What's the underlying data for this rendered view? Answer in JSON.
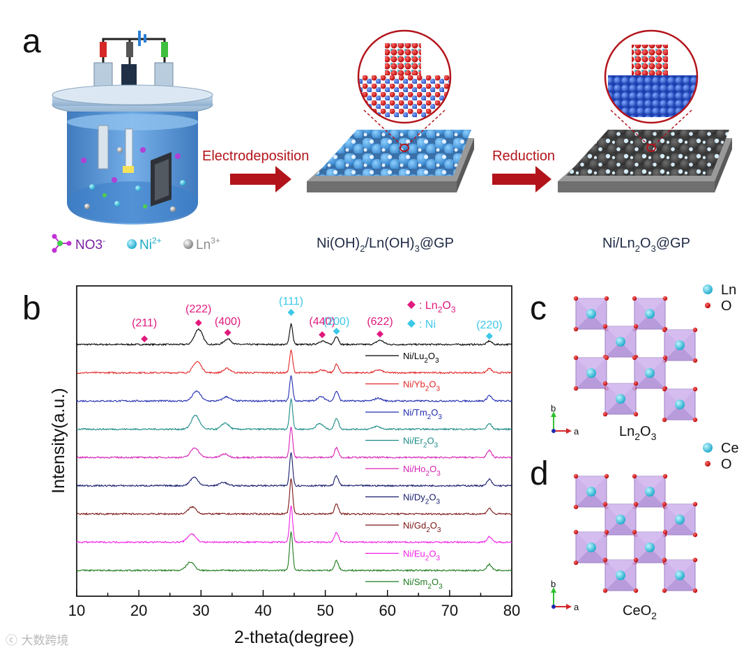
{
  "panel_a": {
    "letter": "a",
    "arrow1_label": "Electrodeposition",
    "arrow2_label": "Reduction",
    "legend": {
      "no3": "NO3",
      "no3_sup": "-",
      "ni": "Ni",
      "ni_sup": "2+",
      "ln": "Ln",
      "ln_sup": "3+"
    },
    "caption_middle": {
      "a": "Ni(OH)",
      "s1": "2",
      "b": "/Ln(OH)",
      "s2": "3",
      "c": "@GP"
    },
    "caption_right": {
      "a": "Ni/Ln",
      "s1": "2",
      "b": "O",
      "s2": "3",
      "c": "@GP"
    },
    "colors": {
      "arrow": "#b3141b",
      "no3": "#7a1fa2",
      "ni": "#19b8c8",
      "ln": "#9a9a9a",
      "electrolyte": "#4f8fd6"
    }
  },
  "panel_b": {
    "letter": "b",
    "legend": {
      "ln2o3_label": "Ln2O3",
      "ni_label": "Ni",
      "ln2o3_color": "#e0197d",
      "ni_color": "#3cc8e8"
    }
  },
  "panel_c": {
    "letter": "c",
    "legend": [
      "Ln",
      "O"
    ],
    "axis_b": "b",
    "axis_a": "a",
    "label": {
      "a": "Ln",
      "s1": "2",
      "b": "O",
      "s2": "3"
    }
  },
  "panel_d": {
    "letter": "d",
    "legend": [
      "Ce",
      "O"
    ],
    "axis_b": "b",
    "axis_a": "a",
    "label": {
      "a": "CeO",
      "s1": "2"
    }
  },
  "chart_data": {
    "type": "line",
    "title": "",
    "xlabel": "2-theta(degree)",
    "ylabel": "Intensity(a.u.)",
    "xlim": [
      10,
      80
    ],
    "xticks": [
      10,
      20,
      30,
      40,
      50,
      60,
      70,
      80
    ],
    "x_minor_step": 5,
    "y_units": "arbitrary, stacked offsets",
    "reflections": [
      {
        "label": "(211)",
        "x": 20.9,
        "phase": "Ln2O3"
      },
      {
        "label": "(222)",
        "x": 29.6,
        "phase": "Ln2O3"
      },
      {
        "label": "(400)",
        "x": 34.3,
        "phase": "Ln2O3"
      },
      {
        "label": "(111)",
        "x": 44.5,
        "phase": "Ni"
      },
      {
        "label": "(440)",
        "x": 49.5,
        "phase": "Ln2O3"
      },
      {
        "label": "(200)",
        "x": 51.8,
        "phase": "Ni"
      },
      {
        "label": "(622)",
        "x": 58.8,
        "phase": "Ln2O3"
      },
      {
        "label": "(220)",
        "x": 76.4,
        "phase": "Ni"
      }
    ],
    "series": [
      {
        "name": "Ni/Lu2O3",
        "name_parts": [
          "Ni/Lu",
          "2",
          "O",
          "3"
        ],
        "color": "#000000",
        "peaks": [
          {
            "x": 29.6,
            "h": 22,
            "w": 0.9
          },
          {
            "x": 34.3,
            "h": 8,
            "w": 0.8
          },
          {
            "x": 44.5,
            "h": 30,
            "w": 0.35
          },
          {
            "x": 49.5,
            "h": 5,
            "w": 0.8
          },
          {
            "x": 51.8,
            "h": 12,
            "w": 0.45
          },
          {
            "x": 58.8,
            "h": 6,
            "w": 0.8
          },
          {
            "x": 76.4,
            "h": 5,
            "w": 0.5
          }
        ]
      },
      {
        "name": "Ni/Yb2O3",
        "name_parts": [
          "Ni/Yb",
          "2",
          "O",
          "3"
        ],
        "color": "#e32626",
        "peaks": [
          {
            "x": 29.4,
            "h": 16,
            "w": 0.9
          },
          {
            "x": 34.2,
            "h": 6,
            "w": 0.8
          },
          {
            "x": 44.5,
            "h": 32,
            "w": 0.35
          },
          {
            "x": 49.4,
            "h": 4,
            "w": 0.8
          },
          {
            "x": 51.8,
            "h": 12,
            "w": 0.45
          },
          {
            "x": 58.6,
            "h": 4,
            "w": 0.8
          },
          {
            "x": 76.4,
            "h": 6,
            "w": 0.5
          }
        ]
      },
      {
        "name": "Ni/Tm2O3",
        "name_parts": [
          "Ni/Tm",
          "2",
          "O",
          "3"
        ],
        "color": "#1f2bb0",
        "peaks": [
          {
            "x": 29.3,
            "h": 14,
            "w": 0.9
          },
          {
            "x": 34.1,
            "h": 6,
            "w": 0.8
          },
          {
            "x": 44.5,
            "h": 36,
            "w": 0.35
          },
          {
            "x": 49.3,
            "h": 6,
            "w": 0.8
          },
          {
            "x": 51.8,
            "h": 14,
            "w": 0.45
          },
          {
            "x": 58.5,
            "h": 4,
            "w": 0.8
          },
          {
            "x": 76.4,
            "h": 8,
            "w": 0.5
          }
        ]
      },
      {
        "name": "Ni/Er2O3",
        "name_parts": [
          "Ni/Er",
          "2",
          "O",
          "3"
        ],
        "color": "#1a8a86",
        "peaks": [
          {
            "x": 29.1,
            "h": 20,
            "w": 0.9
          },
          {
            "x": 33.9,
            "h": 9,
            "w": 0.8
          },
          {
            "x": 44.5,
            "h": 44,
            "w": 0.35
          },
          {
            "x": 49.1,
            "h": 8,
            "w": 0.8
          },
          {
            "x": 51.8,
            "h": 16,
            "w": 0.45
          },
          {
            "x": 58.3,
            "h": 4,
            "w": 0.8
          },
          {
            "x": 76.4,
            "h": 8,
            "w": 0.5
          }
        ]
      },
      {
        "name": "Ni/Ho2O3",
        "name_parts": [
          "Ni/Ho",
          "2",
          "O",
          "3"
        ],
        "color": "#d621b4",
        "peaks": [
          {
            "x": 29.0,
            "h": 14,
            "w": 0.9
          },
          {
            "x": 33.8,
            "h": 5,
            "w": 0.8
          },
          {
            "x": 44.5,
            "h": 44,
            "w": 0.35
          },
          {
            "x": 51.8,
            "h": 14,
            "w": 0.45
          },
          {
            "x": 76.4,
            "h": 10,
            "w": 0.5
          }
        ]
      },
      {
        "name": "Ni/Dy2O3",
        "name_parts": [
          "Ni/Dy",
          "2",
          "O",
          "3"
        ],
        "color": "#151b6b",
        "peaks": [
          {
            "x": 28.9,
            "h": 12,
            "w": 0.9
          },
          {
            "x": 33.6,
            "h": 5,
            "w": 0.8
          },
          {
            "x": 44.5,
            "h": 48,
            "w": 0.35
          },
          {
            "x": 51.8,
            "h": 14,
            "w": 0.45
          },
          {
            "x": 76.4,
            "h": 9,
            "w": 0.5
          }
        ]
      },
      {
        "name": "Ni/Gd2O3",
        "name_parts": [
          "Ni/Gd",
          "2",
          "O",
          "3"
        ],
        "color": "#7a1414",
        "peaks": [
          {
            "x": 28.6,
            "h": 10,
            "w": 0.9
          },
          {
            "x": 44.5,
            "h": 50,
            "w": 0.35
          },
          {
            "x": 51.8,
            "h": 14,
            "w": 0.45
          },
          {
            "x": 76.4,
            "h": 8,
            "w": 0.5
          }
        ]
      },
      {
        "name": "Ni/Eu2O3",
        "name_parts": [
          "Ni/Eu",
          "2",
          "O",
          "3"
        ],
        "color": "#f01ee6",
        "peaks": [
          {
            "x": 28.5,
            "h": 12,
            "w": 0.9
          },
          {
            "x": 44.5,
            "h": 52,
            "w": 0.35
          },
          {
            "x": 51.8,
            "h": 14,
            "w": 0.45
          },
          {
            "x": 76.4,
            "h": 8,
            "w": 0.5
          }
        ]
      },
      {
        "name": "Ni/Sm2O3",
        "name_parts": [
          "Ni/Sm",
          "2",
          "O",
          "3"
        ],
        "color": "#1d7a1d",
        "peaks": [
          {
            "x": 28.3,
            "h": 12,
            "w": 0.9
          },
          {
            "x": 44.5,
            "h": 56,
            "w": 0.35
          },
          {
            "x": 51.8,
            "h": 14,
            "w": 0.45
          },
          {
            "x": 76.4,
            "h": 9,
            "w": 0.5
          }
        ]
      }
    ]
  },
  "watermark": "ⓒ 大数跨境"
}
